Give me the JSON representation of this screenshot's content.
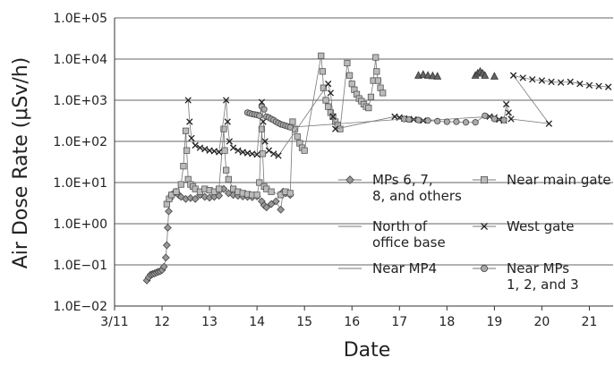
{
  "chart_data": {
    "type": "scatter",
    "title": "",
    "xlabel": "Date",
    "ylabel": "Air Dose Rate (μSv/h)",
    "yscale": "log",
    "ylim": [
      0.01,
      100000
    ],
    "xlim": [
      11,
      21.5
    ],
    "x_tick_labels": [
      "3/11",
      "12",
      "13",
      "14",
      "15",
      "16",
      "17",
      "18",
      "19",
      "20",
      "21"
    ],
    "y_tick_labels": [
      "1.0E−02",
      "1.0E−01",
      "1.0E+00",
      "1.0E+01",
      "1.0E+02",
      "1.0E+03",
      "1.0E+04",
      "1.0E+05"
    ],
    "grid": "horizontal",
    "legend_position": "center-right",
    "series": [
      {
        "name": "MPs 6, 7, 8, and others",
        "marker": "diamond",
        "points": [
          [
            11.68,
            0.042
          ],
          [
            11.72,
            0.05
          ],
          [
            11.76,
            0.058
          ],
          [
            11.8,
            0.06
          ],
          [
            11.84,
            0.062
          ],
          [
            11.88,
            0.065
          ],
          [
            11.92,
            0.068
          ],
          [
            11.96,
            0.07
          ],
          [
            12.0,
            0.075
          ],
          [
            12.04,
            0.09
          ],
          [
            12.08,
            0.15
          ],
          [
            12.1,
            0.3
          ],
          [
            12.12,
            0.8
          ],
          [
            12.14,
            2.0
          ],
          [
            12.16,
            4.0
          ],
          [
            12.2,
            5.0
          ],
          [
            12.25,
            5.5
          ],
          [
            12.3,
            6.0
          ],
          [
            12.35,
            5.0
          ],
          [
            12.4,
            4.5
          ],
          [
            12.5,
            4.0
          ],
          [
            12.6,
            4.2
          ],
          [
            12.7,
            4.0
          ],
          [
            12.8,
            5.0
          ],
          [
            12.9,
            4.5
          ],
          [
            13.0,
            4.3
          ],
          [
            13.1,
            4.5
          ],
          [
            13.2,
            4.8
          ],
          [
            13.3,
            7.0
          ],
          [
            13.4,
            5.5
          ],
          [
            13.5,
            5.0
          ],
          [
            13.6,
            4.8
          ],
          [
            13.7,
            4.6
          ],
          [
            13.8,
            4.5
          ],
          [
            13.9,
            4.4
          ],
          [
            14.0,
            4.6
          ],
          [
            14.1,
            3.5
          ],
          [
            14.15,
            2.8
          ],
          [
            14.2,
            2.5
          ],
          [
            14.3,
            3.0
          ],
          [
            14.4,
            3.5
          ],
          [
            14.5,
            2.2
          ],
          [
            14.55,
            6.0
          ],
          [
            14.6,
            5.5
          ],
          [
            14.7,
            5.0
          ]
        ]
      },
      {
        "name": "Near main gate",
        "marker": "square",
        "points": [
          [
            12.1,
            3.0
          ],
          [
            12.15,
            4.0
          ],
          [
            12.2,
            5.0
          ],
          [
            12.3,
            6.0
          ],
          [
            12.4,
            9.0
          ],
          [
            12.45,
            25.0
          ],
          [
            12.5,
            180.0
          ],
          [
            12.52,
            60.0
          ],
          [
            12.55,
            12.0
          ],
          [
            12.6,
            9.0
          ],
          [
            12.65,
            8.0
          ],
          [
            12.7,
            7.0
          ],
          [
            12.8,
            6.0
          ],
          [
            12.9,
            7.0
          ],
          [
            13.0,
            6.5
          ],
          [
            13.1,
            6.0
          ],
          [
            13.2,
            7.0
          ],
          [
            13.3,
            200.0
          ],
          [
            13.32,
            60.0
          ],
          [
            13.35,
            20.0
          ],
          [
            13.4,
            12.0
          ],
          [
            13.5,
            7.0
          ],
          [
            13.6,
            6.0
          ],
          [
            13.7,
            5.5
          ],
          [
            13.8,
            5.2
          ],
          [
            13.9,
            5.0
          ],
          [
            14.0,
            5.0
          ],
          [
            14.05,
            10.0
          ],
          [
            14.1,
            200.0
          ],
          [
            14.12,
            50.0
          ],
          [
            14.15,
            8.0
          ],
          [
            14.2,
            7.0
          ],
          [
            14.3,
            6.0
          ],
          [
            14.5,
            5.0
          ],
          [
            14.6,
            6.0
          ],
          [
            14.7,
            5.5
          ],
          [
            14.75,
            300.0
          ],
          [
            14.8,
            200.0
          ],
          [
            14.85,
            130.0
          ],
          [
            14.9,
            90.0
          ],
          [
            14.95,
            70.0
          ],
          [
            15.0,
            60.0
          ],
          [
            15.35,
            12000.0
          ],
          [
            15.38,
            5000.0
          ],
          [
            15.4,
            2000.0
          ],
          [
            15.45,
            1000.0
          ],
          [
            15.5,
            700.0
          ],
          [
            15.55,
            500.0
          ],
          [
            15.6,
            400.0
          ],
          [
            15.65,
            300.0
          ],
          [
            15.7,
            250.0
          ],
          [
            15.75,
            200.0
          ],
          [
            15.9,
            8000.0
          ],
          [
            15.95,
            4000.0
          ],
          [
            16.0,
            2500.0
          ],
          [
            16.05,
            1800.0
          ],
          [
            16.1,
            1400.0
          ],
          [
            16.15,
            1100.0
          ],
          [
            16.2,
            950.0
          ],
          [
            16.25,
            800.0
          ],
          [
            16.3,
            700.0
          ],
          [
            16.35,
            650.0
          ],
          [
            16.4,
            1200.0
          ],
          [
            16.45,
            3000.0
          ],
          [
            16.5,
            11000.0
          ],
          [
            16.52,
            5000.0
          ],
          [
            16.55,
            3000.0
          ],
          [
            16.6,
            2000.0
          ],
          [
            16.65,
            1500.0
          ]
        ]
      },
      {
        "name": "North of office base",
        "marker": "triangle",
        "points": [
          [
            17.4,
            4000.0
          ],
          [
            17.5,
            4200.0
          ],
          [
            17.6,
            4000.0
          ],
          [
            17.7,
            3900.0
          ],
          [
            17.8,
            3800.0
          ],
          [
            18.6,
            4000.0
          ],
          [
            18.65,
            4500.0
          ],
          [
            18.7,
            5000.0
          ],
          [
            18.75,
            4500.0
          ],
          [
            18.8,
            4000.0
          ],
          [
            19.0,
            3800.0
          ]
        ]
      },
      {
        "name": "West gate",
        "marker": "x",
        "points": [
          [
            12.55,
            1000.0
          ],
          [
            12.58,
            300.0
          ],
          [
            12.62,
            120.0
          ],
          [
            12.7,
            80.0
          ],
          [
            12.8,
            70.0
          ],
          [
            12.9,
            65.0
          ],
          [
            13.0,
            60.0
          ],
          [
            13.1,
            58.0
          ],
          [
            13.2,
            55.0
          ],
          [
            13.35,
            1000.0
          ],
          [
            13.38,
            300.0
          ],
          [
            13.42,
            100.0
          ],
          [
            13.5,
            70.0
          ],
          [
            13.6,
            60.0
          ],
          [
            13.7,
            55.0
          ],
          [
            13.8,
            52.0
          ],
          [
            13.9,
            50.0
          ],
          [
            14.0,
            48.0
          ],
          [
            14.1,
            900.0
          ],
          [
            14.13,
            300.0
          ],
          [
            14.17,
            100.0
          ],
          [
            14.25,
            60.0
          ],
          [
            14.35,
            50.0
          ],
          [
            14.45,
            45.0
          ],
          [
            15.5,
            2500.0
          ],
          [
            15.55,
            1500.0
          ],
          [
            15.6,
            400.0
          ],
          [
            15.65,
            200.0
          ],
          [
            16.9,
            400.0
          ],
          [
            17.0,
            380.0
          ],
          [
            17.1,
            360.0
          ],
          [
            17.2,
            350.0
          ],
          [
            17.3,
            340.0
          ],
          [
            17.5,
            320.0
          ],
          [
            18.9,
            400.0
          ],
          [
            19.0,
            380.0
          ],
          [
            19.1,
            340.0
          ],
          [
            19.2,
            320.0
          ],
          [
            19.25,
            800.0
          ],
          [
            19.3,
            500.0
          ],
          [
            19.35,
            350.0
          ],
          [
            20.15,
            270.0
          ],
          [
            19.4,
            4000.0
          ],
          [
            19.6,
            3500.0
          ],
          [
            19.8,
            3200.0
          ],
          [
            20.0,
            3000.0
          ],
          [
            20.2,
            2800.0
          ],
          [
            20.4,
            2700.0
          ],
          [
            20.6,
            2800.0
          ],
          [
            20.8,
            2500.0
          ],
          [
            21.0,
            2300.0
          ],
          [
            21.2,
            2200.0
          ],
          [
            21.4,
            2100.0
          ]
        ]
      },
      {
        "name": "Near MPs 1, 2, and 3",
        "marker": "circle",
        "points": [
          [
            13.8,
            500.0
          ],
          [
            13.85,
            480.0
          ],
          [
            13.9,
            460.0
          ],
          [
            13.95,
            450.0
          ],
          [
            14.0,
            440.0
          ],
          [
            14.05,
            420.0
          ],
          [
            14.1,
            700.0
          ],
          [
            14.15,
            600.0
          ],
          [
            14.2,
            400.0
          ],
          [
            14.25,
            380.0
          ],
          [
            14.3,
            350.0
          ],
          [
            14.35,
            330.0
          ],
          [
            14.4,
            300.0
          ],
          [
            14.45,
            280.0
          ],
          [
            14.5,
            260.0
          ],
          [
            14.55,
            250.0
          ],
          [
            14.6,
            240.0
          ],
          [
            14.65,
            230.0
          ],
          [
            14.7,
            220.0
          ],
          [
            17.1,
            350.0
          ],
          [
            17.2,
            340.0
          ],
          [
            17.4,
            330.0
          ],
          [
            17.6,
            320.0
          ],
          [
            17.8,
            310.0
          ],
          [
            18.0,
            300.0
          ],
          [
            18.2,
            300.0
          ],
          [
            18.4,
            290.0
          ],
          [
            18.6,
            290.0
          ],
          [
            18.8,
            420.0
          ],
          [
            19.0,
            350.0
          ],
          [
            19.2,
            330.0
          ]
        ]
      }
    ]
  }
}
